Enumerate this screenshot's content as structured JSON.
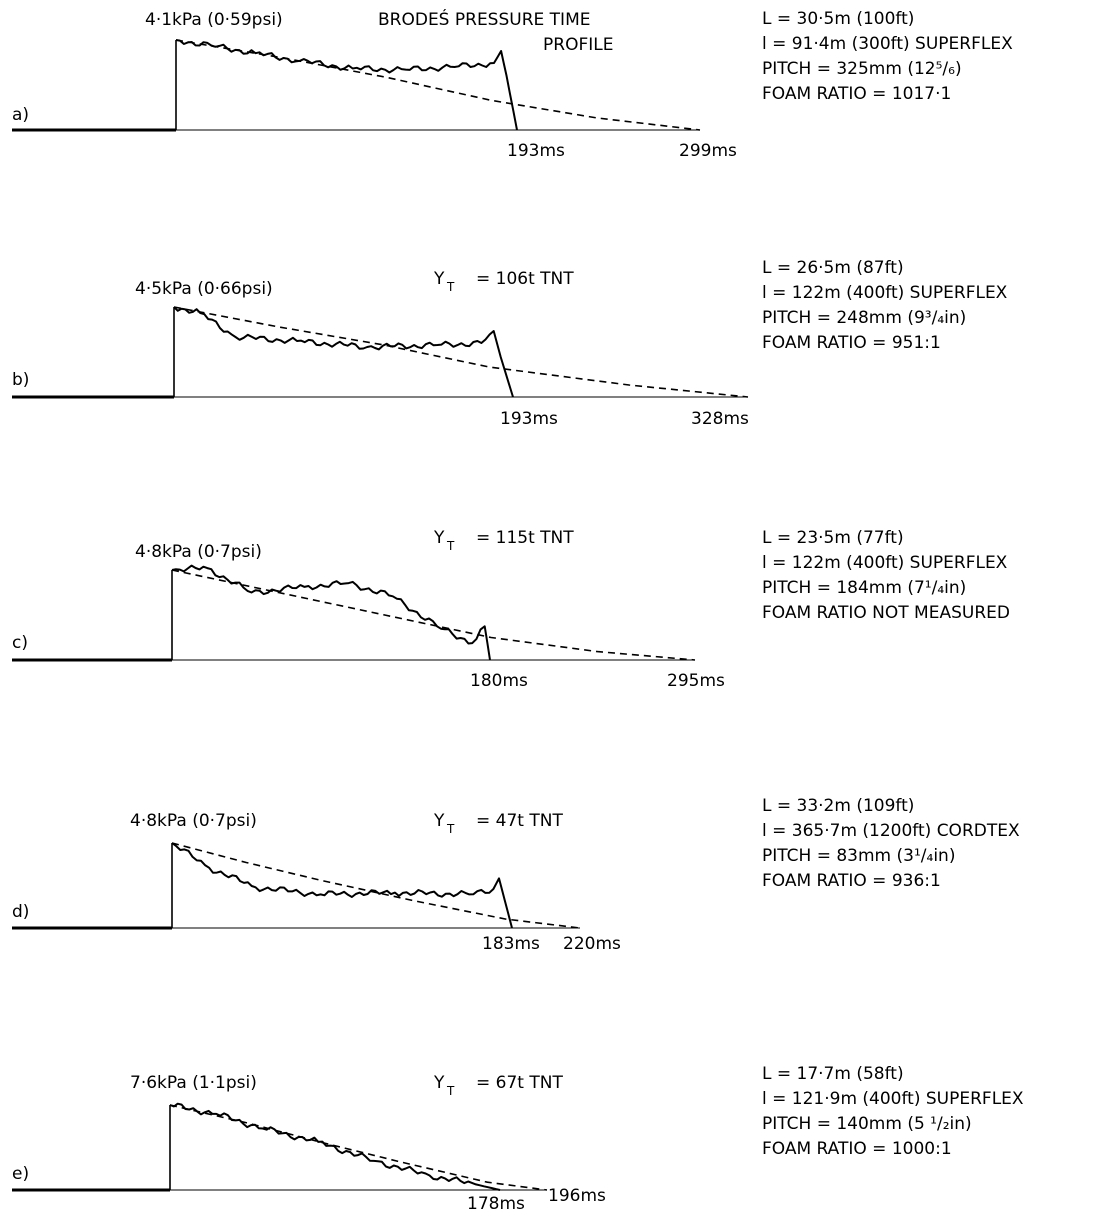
{
  "chart_data": {
    "type": "line",
    "panels": [
      {
        "letter": "a)",
        "peak_label": "4·1kPa (0·59psi)",
        "title_label": "BRODEŚ PRESSURE TIME",
        "title_label_2": "PROFILE",
        "yield_symbol": "",
        "yield_sub": "",
        "yield_value": "",
        "end_label": "193ms",
        "tail_label": "299ms",
        "params": [
          "L = 30·5m (100ft)",
          "l = 91·4m (300ft) SUPERFLEX",
          "PITCH = 325mm (12⁵/₆)",
          "FOAM RATIO = 1017·1"
        ],
        "peak_kpa": 4.1,
        "end_ms": 193,
        "tail_ms": 299,
        "measured": [
          [
            0,
            4.1
          ],
          [
            20,
            3.85
          ],
          [
            45,
            3.5
          ],
          [
            70,
            3.15
          ],
          [
            100,
            2.8
          ],
          [
            130,
            2.75
          ],
          [
            160,
            2.9
          ],
          [
            180,
            3.05
          ],
          [
            184,
            3.6
          ],
          [
            187,
            2.5
          ],
          [
            193,
            0
          ]
        ],
        "brode": [
          [
            0,
            4.1
          ],
          [
            60,
            3.3
          ],
          [
            120,
            2.4
          ],
          [
            180,
            1.35
          ],
          [
            240,
            0.55
          ],
          [
            299,
            0
          ]
        ]
      },
      {
        "letter": "b)",
        "peak_label": "4·5kPa (0·66psi)",
        "title_label": "",
        "title_label_2": "",
        "yield_symbol": "Y",
        "yield_sub": "T",
        "yield_value": "= 106t TNT",
        "end_label": "193ms",
        "tail_label": "328ms",
        "params": [
          "L = 26·5m (87ft)",
          "l = 122m (400ft) SUPERFLEX",
          "PITCH = 248mm (9³/₄in)",
          "FOAM RATIO = 951:1"
        ],
        "peak_kpa": 4.5,
        "end_ms": 193,
        "tail_ms": 328,
        "measured": [
          [
            0,
            4.5
          ],
          [
            15,
            4.2
          ],
          [
            35,
            3.0
          ],
          [
            70,
            2.8
          ],
          [
            110,
            2.5
          ],
          [
            150,
            2.6
          ],
          [
            175,
            2.7
          ],
          [
            182,
            3.3
          ],
          [
            186,
            2.0
          ],
          [
            193,
            0
          ]
        ],
        "brode": [
          [
            0,
            4.5
          ],
          [
            60,
            3.5
          ],
          [
            120,
            2.6
          ],
          [
            180,
            1.5
          ],
          [
            260,
            0.6
          ],
          [
            328,
            0
          ]
        ]
      },
      {
        "letter": "c)",
        "peak_label": "4·8kPa (0·7psi)",
        "title_label": "",
        "title_label_2": "",
        "yield_symbol": "Y",
        "yield_sub": "T",
        "yield_value": "= 115t TNT",
        "end_label": "180ms",
        "tail_label": "295ms",
        "params": [
          "L = 23·5m (77ft)",
          "l = 122m (400ft) SUPERFLEX",
          "PITCH = 184mm (7¹/₄in)",
          "FOAM RATIO NOT MEASURED"
        ],
        "peak_kpa": 4.8,
        "end_ms": 180,
        "tail_ms": 295,
        "measured": [
          [
            0,
            4.8
          ],
          [
            20,
            4.9
          ],
          [
            45,
            3.6
          ],
          [
            75,
            3.9
          ],
          [
            100,
            4.1
          ],
          [
            125,
            3.4
          ],
          [
            150,
            1.8
          ],
          [
            170,
            0.9
          ],
          [
            177,
            1.8
          ],
          [
            180,
            0
          ]
        ],
        "brode": [
          [
            0,
            4.8
          ],
          [
            60,
            3.6
          ],
          [
            120,
            2.4
          ],
          [
            180,
            1.2
          ],
          [
            240,
            0.45
          ],
          [
            295,
            0
          ]
        ]
      },
      {
        "letter": "d)",
        "peak_label": "4·8kPa (0·7psi)",
        "title_label": "",
        "title_label_2": "",
        "yield_symbol": "Y",
        "yield_sub": "T",
        "yield_value": "= 47t TNT",
        "end_label": "183ms",
        "tail_label": "220ms",
        "params": [
          "L = 33·2m (109ft)",
          "l = 365·7m (1200ft) CORDTEX",
          "PITCH = 83mm (3¹/₄in)",
          "FOAM RATIO = 936:1"
        ],
        "peak_kpa": 4.8,
        "end_ms": 183,
        "tail_ms": 220,
        "measured": [
          [
            0,
            4.8
          ],
          [
            20,
            3.4
          ],
          [
            45,
            2.3
          ],
          [
            80,
            1.9
          ],
          [
            120,
            2.0
          ],
          [
            160,
            1.9
          ],
          [
            173,
            2.2
          ],
          [
            176,
            2.8
          ],
          [
            179,
            1.6
          ],
          [
            183,
            0
          ]
        ],
        "brode": [
          [
            0,
            4.8
          ],
          [
            40,
            3.7
          ],
          [
            80,
            2.7
          ],
          [
            130,
            1.55
          ],
          [
            180,
            0.5
          ],
          [
            220,
            0
          ]
        ]
      },
      {
        "letter": "e)",
        "peak_label": "7·6kPa (1·1psi)",
        "title_label": "",
        "title_label_2": "",
        "yield_symbol": "Y",
        "yield_sub": "T",
        "yield_value": "= 67t TNT",
        "end_label": "178ms",
        "tail_label": "196ms",
        "params": [
          "L = 17·7m (58ft)",
          "l = 121·9m (400ft) SUPERFLEX",
          "PITCH = 140mm (5 ¹/₂in)",
          "FOAM RATIO = 1000:1"
        ],
        "peak_kpa": 7.6,
        "end_ms": 178,
        "tail_ms": 196,
        "measured": [
          [
            0,
            7.6
          ],
          [
            25,
            6.8
          ],
          [
            50,
            5.5
          ],
          [
            80,
            4.3
          ],
          [
            110,
            2.6
          ],
          [
            140,
            1.3
          ],
          [
            165,
            0.5
          ],
          [
            178,
            0
          ]
        ],
        "brode": [
          [
            0,
            7.6
          ],
          [
            40,
            6.0
          ],
          [
            80,
            4.2
          ],
          [
            120,
            2.5
          ],
          [
            165,
            0.7
          ],
          [
            196,
            0
          ]
        ]
      }
    ]
  }
}
